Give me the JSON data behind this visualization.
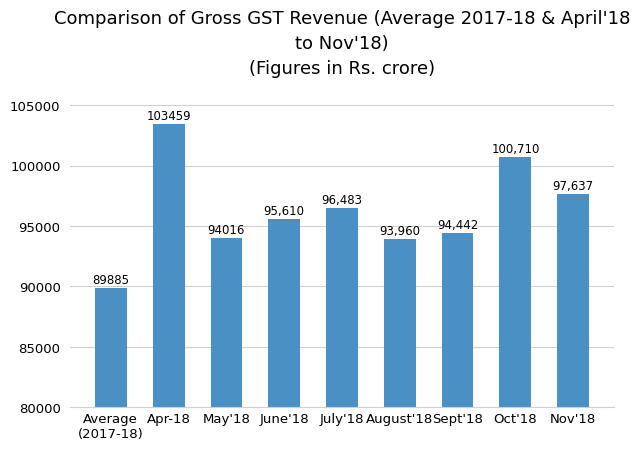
{
  "categories": [
    "Average\n(2017-18)",
    "Apr-18",
    "May'18",
    "June'18",
    "July'18",
    "August'18",
    "Sept'18",
    "Oct'18",
    "Nov'18"
  ],
  "values": [
    89885,
    103459,
    94016,
    95610,
    96483,
    93960,
    94442,
    100710,
    97637
  ],
  "labels": [
    "89885",
    "103459",
    "94016",
    "95,610",
    "96,483",
    "93,960",
    "94,442",
    "100,710",
    "97,637"
  ],
  "bar_color": "#4a90c4",
  "title": "Comparison of Gross GST Revenue (Average 2017-18 & April'18\nto Nov'18)\n(Figures in Rs. crore)",
  "ylim": [
    80000,
    106500
  ],
  "yticks": [
    80000,
    85000,
    90000,
    95000,
    100000,
    105000
  ],
  "ytick_labels": [
    "80000",
    "85000",
    "90000",
    "95000",
    "100000",
    "105000"
  ],
  "background_color": "#ffffff",
  "title_fontsize": 13,
  "label_fontsize": 8.5,
  "tick_fontsize": 9.5
}
